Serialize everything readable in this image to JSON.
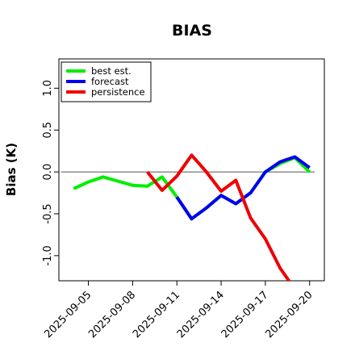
{
  "chart_data": {
    "type": "line",
    "title": "BIAS",
    "ylabel": "Bias (K)",
    "xlabel": "",
    "ylim": [
      -1.3,
      1.35
    ],
    "xlim": [
      "2025-09-03",
      "2025-09-21"
    ],
    "yticks": [
      -1.0,
      -0.5,
      0.0,
      0.5,
      1.0
    ],
    "ytick_labels": [
      "-1.0",
      "-0.5",
      "0.0",
      "0.5",
      "1.0"
    ],
    "xticks": [
      "2025-09-05",
      "2025-09-08",
      "2025-09-11",
      "2025-09-14",
      "2025-09-17",
      "2025-09-20"
    ],
    "xtick_labels": [
      "2025-09-05",
      "2025-09-08",
      "2025-09-11",
      "2025-09-14",
      "2025-09-17",
      "2025-09-20"
    ],
    "highlighted_xtick": "2025-09-11",
    "highlight_color": "#2e8b2e",
    "reference_line": 0.0,
    "legend_position": "upper-left",
    "series": [
      {
        "name": "best est.",
        "color": "#00ee00",
        "x": [
          "2025-09-04",
          "2025-09-05",
          "2025-09-06",
          "2025-09-07",
          "2025-09-08",
          "2025-09-09",
          "2025-09-10",
          "2025-09-11",
          "2025-09-12",
          "2025-09-13",
          "2025-09-14",
          "2025-09-15",
          "2025-09-16",
          "2025-09-17",
          "2025-09-18",
          "2025-09-19",
          "2025-09-20"
        ],
        "values": [
          -0.2,
          -0.12,
          -0.06,
          -0.11,
          -0.16,
          -0.17,
          -0.06,
          -0.3,
          -0.56,
          -0.43,
          -0.28,
          -0.38,
          -0.25,
          0.0,
          0.1,
          0.17,
          0.0
        ]
      },
      {
        "name": "forecast",
        "color": "#0000ee",
        "x": [
          "2025-09-11",
          "2025-09-12",
          "2025-09-13",
          "2025-09-14",
          "2025-09-15",
          "2025-09-16",
          "2025-09-17",
          "2025-09-18",
          "2025-09-19",
          "2025-09-20"
        ],
        "values": [
          -0.3,
          -0.56,
          -0.43,
          -0.28,
          -0.38,
          -0.25,
          0.0,
          0.12,
          0.18,
          0.05
        ]
      },
      {
        "name": "persistence",
        "color": "#ee0000",
        "x": [
          "2025-09-09",
          "2025-09-10",
          "2025-09-11",
          "2025-09-12",
          "2025-09-13",
          "2025-09-14",
          "2025-09-15",
          "2025-09-16",
          "2025-09-17",
          "2025-09-18",
          "2025-09-19"
        ],
        "values": [
          0.0,
          -0.22,
          -0.05,
          0.2,
          0.0,
          -0.23,
          -0.1,
          -0.55,
          -0.8,
          -1.15,
          -1.4
        ]
      }
    ]
  }
}
